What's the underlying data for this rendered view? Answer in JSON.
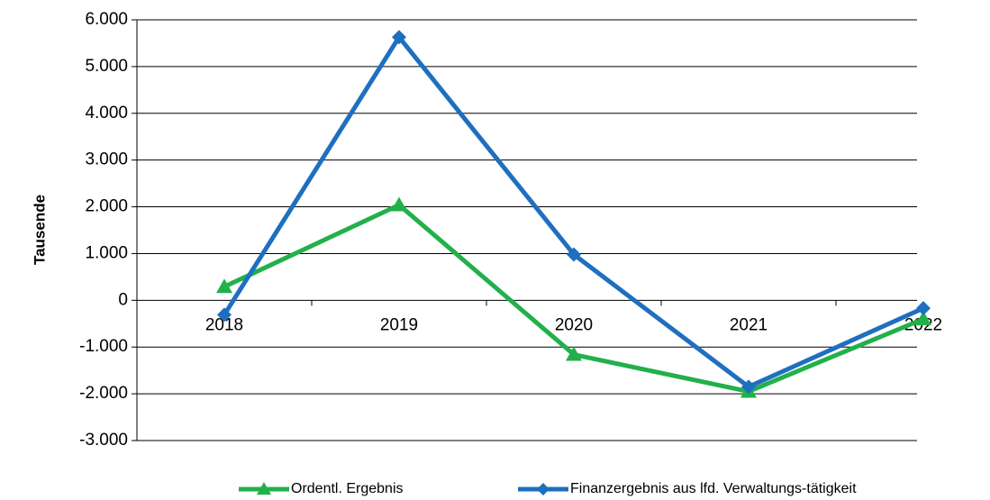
{
  "chart_data": {
    "type": "line",
    "ylabel": "Tausende",
    "categories": [
      "2018",
      "2019",
      "2020",
      "2021",
      "2022"
    ],
    "series": [
      {
        "name": "Ordentl. Ergebnis",
        "color": "#22b04b",
        "marker": "triangle",
        "values": [
          290,
          2040,
          -1160,
          -1950,
          -400
        ]
      },
      {
        "name": "Finanzergebnis aus lfd. Verwaltungs-tätigkeit",
        "color": "#1f6fc0",
        "marker": "diamond",
        "values": [
          -310,
          5630,
          980,
          -1850,
          -170
        ]
      }
    ],
    "ylim": [
      -3000,
      6000
    ],
    "yticks": [
      {
        "value": -3000,
        "label": "-3.000"
      },
      {
        "value": -2000,
        "label": "-2.000"
      },
      {
        "value": -1000,
        "label": "-1.000"
      },
      0,
      {
        "value": 1000,
        "label": "1.000"
      },
      {
        "value": 2000,
        "label": "2.000"
      },
      {
        "value": 3000,
        "label": "3.000"
      },
      {
        "value": 4000,
        "label": "4.000"
      },
      {
        "value": 5000,
        "label": "5.000"
      },
      {
        "value": 6000,
        "label": "6.000"
      }
    ],
    "grid": true,
    "legend": "bottom"
  }
}
